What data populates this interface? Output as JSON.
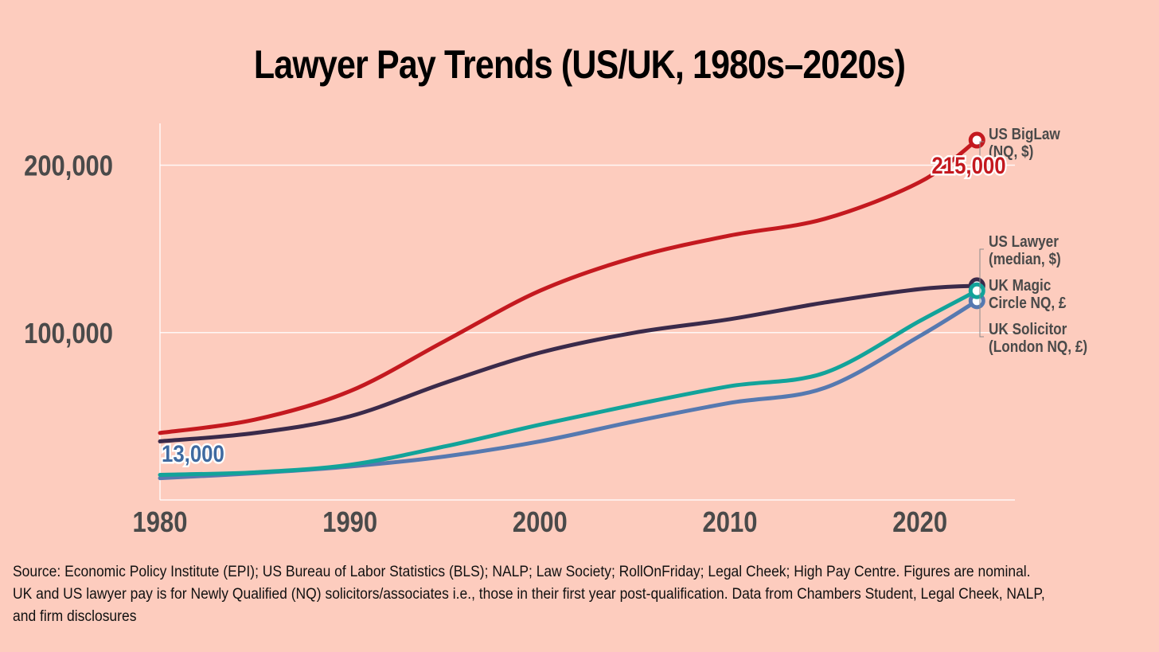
{
  "chart_data": {
    "type": "line",
    "title": "Lawyer Pay Trends (US/UK, 1980s–2020s)",
    "xlabel": "",
    "ylabel": "",
    "xlim": [
      1980,
      2025
    ],
    "ylim": [
      0,
      225000
    ],
    "xticks": [
      1980,
      1990,
      2000,
      2010,
      2020
    ],
    "xtick_labels": [
      "1980",
      "1990",
      "2000",
      "2010",
      "2020"
    ],
    "yticks": [
      100000,
      200000
    ],
    "ytick_labels": [
      "100,000",
      "200,000"
    ],
    "grid": true,
    "x": [
      1980,
      1985,
      1990,
      1995,
      2000,
      2005,
      2010,
      2015,
      2020,
      2023
    ],
    "series": [
      {
        "name": "US BigLaw (NQ, $)",
        "label_lines": [
          "US BigLaw",
          "(NQ, $)"
        ],
        "color": "#c4191f",
        "values": [
          40000,
          48000,
          65000,
          95000,
          125000,
          145000,
          158000,
          168000,
          190000,
          215000
        ]
      },
      {
        "name": "US Lawyer (median, $)",
        "label_lines": [
          "US Lawyer",
          "(median, $)"
        ],
        "color": "#3a2a4a",
        "values": [
          35000,
          40000,
          50000,
          70000,
          88000,
          100000,
          108000,
          118000,
          126000,
          128000
        ]
      },
      {
        "name": "UK Magic Circle NQ, £",
        "label_lines": [
          "UK Magic",
          "Circle NQ, £"
        ],
        "color": "#12a39a",
        "values": [
          15000,
          16500,
          21000,
          32000,
          45000,
          57000,
          68000,
          76000,
          107000,
          125000
        ]
      },
      {
        "name": "UK Solicitor (London NQ, £)",
        "label_lines": [
          "UK Solicitor",
          "(London NQ, £)"
        ],
        "color": "#5679b0",
        "values": [
          13000,
          16000,
          20000,
          26000,
          35000,
          47000,
          58000,
          67000,
          98000,
          119000
        ]
      }
    ],
    "annotations": [
      {
        "text": "215,000",
        "series": "US BigLaw (NQ, $)",
        "color": "#c4191f"
      },
      {
        "text": "13,000",
        "series": "UK Solicitor (London NQ, £)",
        "color": "#3f6aa0"
      }
    ],
    "legend_placement": "right"
  },
  "source_text": "Source: Economic Policy Institute (EPI); US Bureau of Labor Statistics (BLS); NALP; Law Society; RollOnFriday; Legal Cheek; High Pay Centre. Figures are nominal. UK and US lawyer pay is for Newly Qualified (NQ) solicitors/associates i.e., those in their first year post-qualification. Data from Chambers Student, Legal Cheek, NALP, and firm disclosures"
}
